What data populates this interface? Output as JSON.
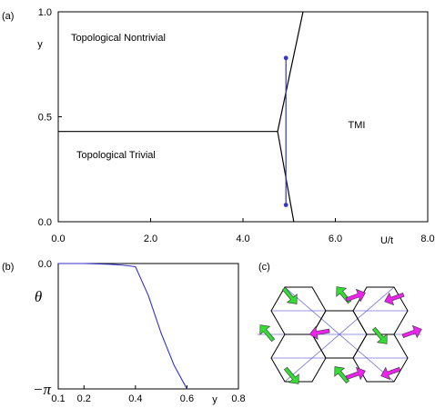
{
  "panels": {
    "a": "(a)",
    "b": "(b)",
    "c": "(c)"
  },
  "chart_data": [
    {
      "type": "line",
      "panel": "(a)",
      "xlabel": "U/t",
      "ylabel": "y",
      "xlim": [
        0,
        8
      ],
      "ylim": [
        0,
        1
      ],
      "xticks": [
        "0.0",
        "2.0",
        "4.0",
        "6.0",
        "8.0"
      ],
      "yticks": [
        "0.0",
        "0.5",
        "1.0"
      ],
      "regions": [
        "Topological Nontrivial",
        "Topological Trivial",
        "TMI"
      ],
      "series": [
        {
          "id": "horizontal-boundary",
          "color": "#000000",
          "x": [
            0,
            4.75
          ],
          "y": [
            0.43,
            0.43
          ]
        },
        {
          "id": "upper-boundary",
          "color": "#000000",
          "x": [
            4.75,
            5.3
          ],
          "y": [
            0.43,
            1.0
          ]
        },
        {
          "id": "lower-boundary",
          "color": "#000000",
          "x": [
            4.75,
            5.1
          ],
          "y": [
            0.43,
            0.0
          ]
        },
        {
          "id": "scan-line",
          "color": "#3333cc",
          "x": [
            4.93,
            4.93
          ],
          "y": [
            0.08,
            0.78
          ],
          "markers": true
        }
      ]
    },
    {
      "type": "line",
      "panel": "(b)",
      "xlabel": "y",
      "ylabel": "θ",
      "xlim": [
        0.1,
        0.8
      ],
      "ylim": [
        -3.14159,
        0
      ],
      "xticks": [
        "0.1",
        "0.2",
        "0.4",
        "0.6",
        "0.8"
      ],
      "yticks": [
        "0.0",
        "−π"
      ],
      "series": [
        {
          "id": "theta-vs-y",
          "color": "#3333cc",
          "x": [
            0.1,
            0.2,
            0.3,
            0.35,
            0.4,
            0.45,
            0.5,
            0.55,
            0.6
          ],
          "y": [
            0.0,
            0.0,
            -0.02,
            -0.04,
            -0.08,
            -0.8,
            -1.75,
            -2.55,
            -3.14
          ]
        }
      ]
    }
  ],
  "lattice": {
    "line_color": "#000000",
    "bond_color": "#5555cc",
    "arrow_colors": [
      "#33dd33",
      "#ee22ee"
    ]
  }
}
